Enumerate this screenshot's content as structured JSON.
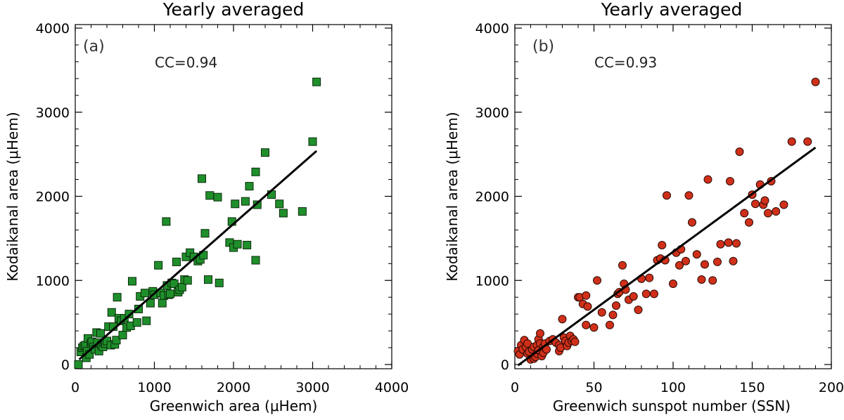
{
  "chart_data": [
    {
      "type": "scatter",
      "title": "Yearly averaged",
      "panel": "(a)",
      "annotation": "CC=0.94",
      "xlabel": "Greenwich area (μHem)",
      "ylabel": "Kodaikanal area (μHem)",
      "xlim": [
        0,
        4000
      ],
      "ylim": [
        0,
        4000
      ],
      "xticks": [
        "0",
        "1000",
        "2000",
        "3000",
        "4000"
      ],
      "yticks": [
        "0",
        "1000",
        "2000",
        "3000",
        "4000"
      ],
      "marker": "square",
      "marker_color": "#1f8f2b",
      "fit_line": {
        "x": [
          50,
          3050
        ],
        "y": [
          60,
          2540
        ]
      },
      "x": [
        40,
        70,
        90,
        110,
        130,
        140,
        150,
        160,
        180,
        200,
        210,
        230,
        250,
        270,
        280,
        300,
        320,
        330,
        350,
        370,
        380,
        400,
        420,
        450,
        460,
        480,
        500,
        520,
        530,
        550,
        580,
        600,
        620,
        650,
        680,
        700,
        720,
        780,
        800,
        820,
        880,
        900,
        950,
        980,
        1000,
        1050,
        1080,
        1100,
        1120,
        1150,
        1160,
        1180,
        1200,
        1220,
        1250,
        1280,
        1300,
        1320,
        1350,
        1380,
        1400,
        1420,
        1450,
        1500,
        1550,
        1580,
        1600,
        1620,
        1640,
        1680,
        1700,
        1800,
        1820,
        1950,
        1980,
        2000,
        2020,
        2050,
        2150,
        2170,
        2200,
        2280,
        2280,
        2300,
        2400,
        2480,
        2580,
        2630,
        2870,
        3000,
        3050
      ],
      "y": [
        0,
        150,
        200,
        220,
        230,
        80,
        160,
        310,
        120,
        250,
        270,
        210,
        180,
        380,
        260,
        160,
        370,
        230,
        210,
        260,
        250,
        280,
        450,
        230,
        620,
        450,
        240,
        290,
        800,
        550,
        520,
        350,
        550,
        440,
        600,
        460,
        990,
        500,
        660,
        810,
        850,
        520,
        730,
        870,
        830,
        1180,
        850,
        730,
        820,
        1700,
        940,
        830,
        840,
        970,
        960,
        1220,
        860,
        890,
        920,
        1010,
        1280,
        1000,
        1330,
        1280,
        1230,
        1250,
        2210,
        1300,
        1560,
        1010,
        2010,
        1990,
        970,
        1450,
        1700,
        1390,
        1910,
        1430,
        1940,
        1420,
        2120,
        1240,
        2290,
        1900,
        2520,
        2020,
        1910,
        1800,
        1820,
        2650,
        3360
      ]
    },
    {
      "type": "scatter",
      "title": "Yearly averaged",
      "panel": "(b)",
      "annotation": "CC=0.93",
      "xlabel": "Greenwich sunspot number (SSN)",
      "ylabel": "Kodaikanal area (μHem)",
      "xlim": [
        0,
        200
      ],
      "ylim": [
        0,
        4000
      ],
      "xticks": [
        "0",
        "50",
        "100",
        "150",
        "200"
      ],
      "yticks": [
        "0",
        "1000",
        "2000",
        "3000",
        "4000"
      ],
      "marker": "circle",
      "marker_color": "#d0301a",
      "fit_line": {
        "x": [
          2,
          190
        ],
        "y": [
          -10,
          2580
        ]
      },
      "x": [
        2,
        3,
        4,
        5,
        6,
        7,
        8,
        8,
        9,
        10,
        11,
        12,
        12,
        13,
        14,
        14,
        15,
        15,
        16,
        16,
        17,
        18,
        18,
        19,
        20,
        22,
        24,
        26,
        28,
        28,
        29,
        30,
        31,
        32,
        33,
        34,
        35,
        36,
        37,
        38,
        40,
        41,
        43,
        45,
        45,
        46,
        50,
        52,
        55,
        60,
        62,
        64,
        65,
        66,
        68,
        69,
        70,
        72,
        75,
        78,
        80,
        83,
        85,
        88,
        90,
        92,
        93,
        95,
        96,
        100,
        102,
        104,
        105,
        108,
        110,
        112,
        115,
        118,
        120,
        122,
        125,
        128,
        130,
        135,
        136,
        138,
        140,
        142,
        145,
        148,
        150,
        152,
        155,
        157,
        158,
        160,
        162,
        165,
        170,
        175,
        185,
        190
      ],
      "y": [
        160,
        120,
        230,
        180,
        290,
        210,
        130,
        250,
        150,
        60,
        180,
        210,
        70,
        90,
        130,
        230,
        300,
        170,
        370,
        250,
        100,
        140,
        210,
        250,
        180,
        280,
        300,
        260,
        230,
        160,
        200,
        540,
        320,
        280,
        220,
        260,
        340,
        280,
        300,
        270,
        800,
        800,
        720,
        820,
        470,
        690,
        440,
        1000,
        620,
        470,
        590,
        700,
        840,
        860,
        1180,
        960,
        890,
        770,
        810,
        650,
        1020,
        840,
        1030,
        840,
        1240,
        1260,
        1420,
        1240,
        2010,
        960,
        1330,
        1180,
        1370,
        1230,
        2010,
        1690,
        1310,
        1010,
        1190,
        2200,
        1000,
        1220,
        1430,
        1450,
        2180,
        1230,
        1440,
        2530,
        1800,
        1690,
        2020,
        1910,
        2140,
        1900,
        1950,
        1800,
        2180,
        1820,
        1900,
        2650,
        2650,
        3360
      ]
    }
  ]
}
